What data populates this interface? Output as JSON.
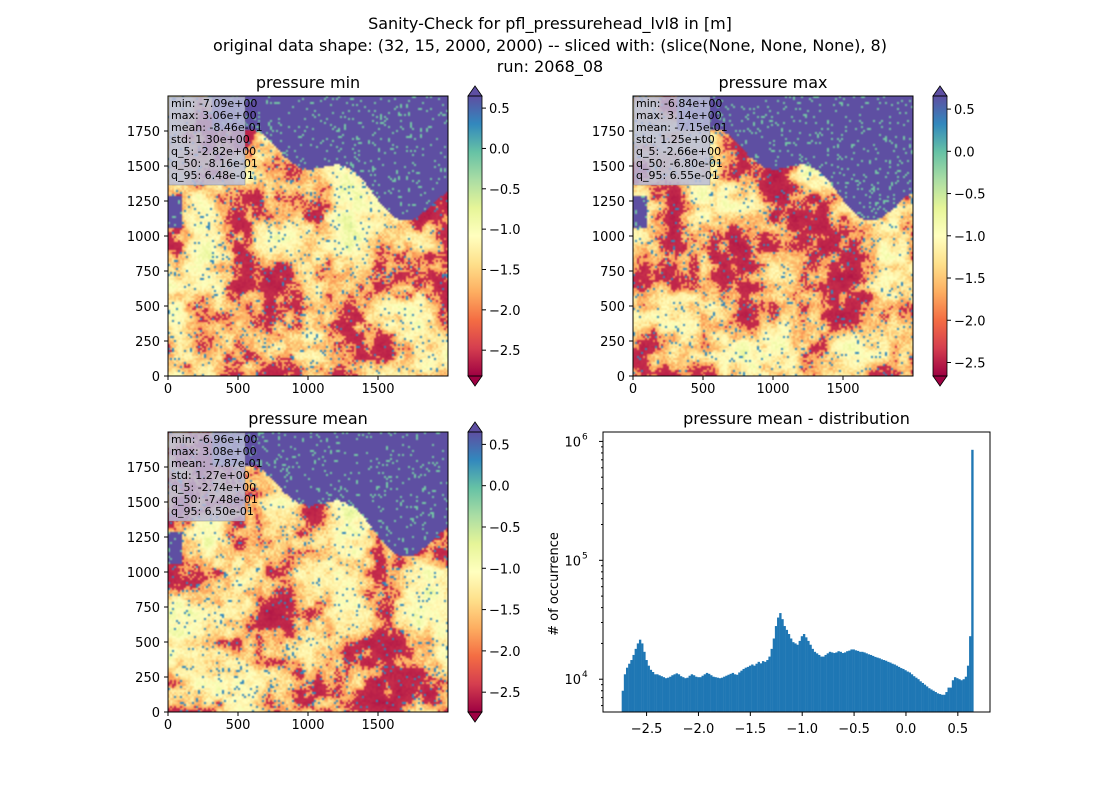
{
  "suptitle": {
    "line1": "Sanity-Check for pfl_pressurehead_lvl8 in [m]",
    "line2": "original data shape: (32, 15, 2000, 2000) -- sliced with: (slice(None, None, None), 8)",
    "line3": "run: 2068_08"
  },
  "colors": {
    "colormap": "Spectral",
    "cmap_stops": [
      "#9e0142",
      "#d53e4f",
      "#f46d43",
      "#fdae61",
      "#fee08b",
      "#ffffbf",
      "#e6f598",
      "#abdda4",
      "#66c2a5",
      "#3288bd",
      "#5e4fa2"
    ],
    "bar": "#1f77b4",
    "statbox": "#b8bcd8"
  },
  "chart_data": [
    {
      "type": "heatmap",
      "title": "pressure min",
      "xlim": [
        0,
        2000
      ],
      "ylim": [
        0,
        2000
      ],
      "xticks": [
        0,
        500,
        1000,
        1500
      ],
      "yticks": [
        0,
        250,
        500,
        750,
        1000,
        1250,
        1500,
        1750
      ],
      "colorbar": {
        "range": [
          -2.82,
          0.65
        ],
        "ticks": [
          "0.5",
          "0.0",
          "−0.5",
          "−1.0",
          "−1.5",
          "−2.0",
          "−2.5"
        ],
        "extend": "both"
      },
      "stats": [
        "min: -7.09e+00",
        "max: 3.06e+00",
        "mean: -8.46e-01",
        "std: 1.30e+00",
        "q_5: -2.82e+00",
        "q_50: -8.16e-01",
        "q_95: 6.48e-01"
      ]
    },
    {
      "type": "heatmap",
      "title": "pressure max",
      "xlim": [
        0,
        2000
      ],
      "ylim": [
        0,
        2000
      ],
      "xticks": [
        0,
        500,
        1000,
        1500
      ],
      "yticks": [
        0,
        250,
        500,
        750,
        1000,
        1250,
        1500,
        1750
      ],
      "colorbar": {
        "range": [
          -2.66,
          0.655
        ],
        "ticks": [
          "0.5",
          "0.0",
          "−0.5",
          "−1.0",
          "−1.5",
          "−2.0",
          "−2.5"
        ],
        "extend": "both"
      },
      "stats": [
        "min: -6.84e+00",
        "max: 3.14e+00",
        "mean: -7.15e-01",
        "std: 1.25e+00",
        "q_5: -2.66e+00",
        "q_50: -6.80e-01",
        "q_95: 6.55e-01"
      ]
    },
    {
      "type": "heatmap",
      "title": "pressure mean",
      "xlim": [
        0,
        2000
      ],
      "ylim": [
        0,
        2000
      ],
      "xticks": [
        0,
        500,
        1000,
        1500
      ],
      "yticks": [
        0,
        250,
        500,
        750,
        1000,
        1250,
        1500,
        1750
      ],
      "colorbar": {
        "range": [
          -2.74,
          0.65
        ],
        "ticks": [
          "0.5",
          "0.0",
          "−0.5",
          "−1.0",
          "−1.5",
          "−2.0",
          "−2.5"
        ],
        "extend": "both"
      },
      "stats": [
        "min: -6.96e+00",
        "max: 3.08e+00",
        "mean: -7.87e-01",
        "std: 1.27e+00",
        "q_5: -2.74e+00",
        "q_50: -7.48e-01",
        "q_95: 6.50e-01"
      ]
    },
    {
      "type": "bar",
      "title": "pressure mean - distribution",
      "ylabel": "# of occurrence",
      "yscale": "log",
      "xlim": [
        -2.92,
        0.81
      ],
      "ylim": [
        5300,
        1200000
      ],
      "xticks": [
        -2.5,
        -2.0,
        -1.5,
        -1.0,
        -0.5,
        0.0,
        0.5
      ],
      "xticklabels": [
        "−2.5",
        "−2.0",
        "−1.5",
        "−1.0",
        "−0.5",
        "0.0",
        "0.5"
      ],
      "yticks": [
        10000,
        100000,
        1000000
      ],
      "yticklabels": [
        [
          "10",
          "4"
        ],
        [
          "10",
          "5"
        ],
        [
          "10",
          "6"
        ]
      ],
      "bins_x": [
        -2.74,
        0.65
      ],
      "counts": [
        8000,
        11000,
        12500,
        13500,
        14500,
        16000,
        18000,
        20000,
        21500,
        20000,
        17000,
        14500,
        13000,
        12000,
        11500,
        11000,
        11000,
        10800,
        10600,
        10400,
        10200,
        10300,
        10500,
        10800,
        11000,
        11200,
        11000,
        10600,
        10400,
        10200,
        10300,
        10700,
        11000,
        10800,
        10500,
        10400,
        10400,
        10700,
        11000,
        11300,
        11100,
        10800,
        10500,
        10400,
        10300,
        10200,
        10300,
        10500,
        10700,
        10900,
        11100,
        11300,
        11000,
        10900,
        11400,
        11800,
        12200,
        12500,
        12700,
        13000,
        13300,
        13000,
        13500,
        14000,
        13600,
        14200,
        14000,
        14500,
        15500,
        18000,
        22000,
        28000,
        33000,
        36000,
        32000,
        28000,
        26000,
        24000,
        22000,
        20500,
        20000,
        19500,
        21000,
        23000,
        24000,
        22500,
        21000,
        19500,
        18000,
        17000,
        16500,
        16000,
        15500,
        15500,
        16000,
        16500,
        17000,
        16800,
        16600,
        16800,
        17200,
        17000,
        16600,
        16800,
        17200,
        17400,
        17800,
        17800,
        17500,
        17300,
        17000,
        17000,
        16800,
        16500,
        16200,
        16000,
        15700,
        15400,
        15200,
        15000,
        14700,
        14500,
        14300,
        14000,
        13800,
        13500,
        13300,
        13000,
        12700,
        12400,
        12200,
        11900,
        11600,
        11400,
        11000,
        10600,
        10300,
        10000,
        9600,
        9300,
        9000,
        8700,
        8400,
        8200,
        8000,
        7800,
        7600,
        7500,
        7400,
        7400,
        7800,
        8500,
        8500,
        9800,
        10400,
        10200,
        10000,
        9800,
        10000,
        10500,
        13000,
        23000,
        850000
      ]
    }
  ]
}
